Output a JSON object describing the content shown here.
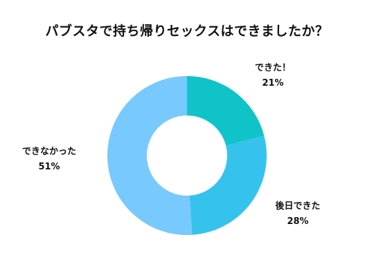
{
  "chart_data": {
    "type": "pie",
    "title": "パブスタで持ち帰りセックスはできましたか？",
    "categories": [
      "できた！",
      "後日できた",
      "できなかった"
    ],
    "values": [
      21,
      28,
      51
    ],
    "value_labels": [
      "21%",
      "28%",
      "51%"
    ],
    "colors": [
      "#10c3c9",
      "#35c3ee",
      "#78c9fd"
    ],
    "donut": true,
    "legend": "none"
  }
}
